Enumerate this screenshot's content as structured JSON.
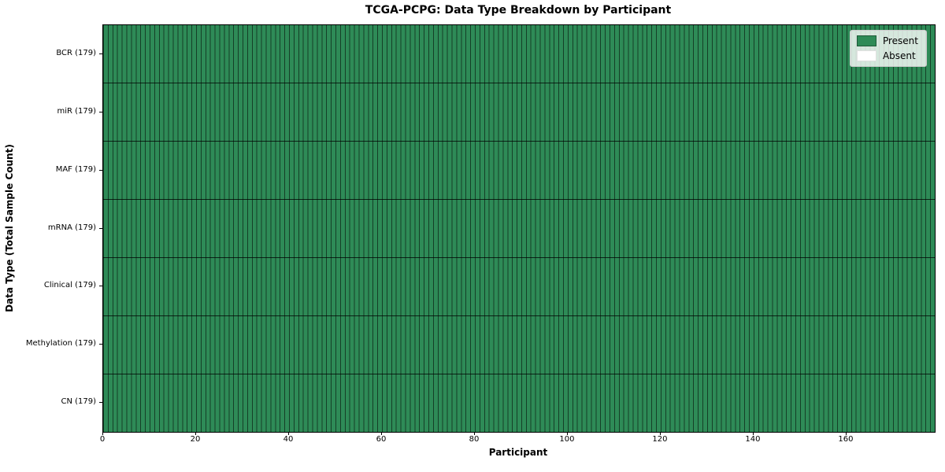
{
  "title": "TCGA-PCPG: Data Type Breakdown by Participant",
  "axes": {
    "x_label": "Participant",
    "y_label": "Data Type (Total Sample Count)"
  },
  "legend": {
    "items": [
      {
        "label": "Present",
        "color": "#2e8b57",
        "kind": "present"
      },
      {
        "label": "Absent",
        "color": "#ffffff",
        "kind": "absent"
      }
    ],
    "position": "upper right"
  },
  "colors": {
    "present": "#2e8b57",
    "absent": "#ffffff",
    "cell_edge": "rgba(0,0,0,0.55)",
    "row_edge": "rgba(0,0,0,0.75)",
    "spine": "#000000"
  },
  "chart_data": {
    "type": "heatmap",
    "title": "TCGA-PCPG: Data Type Breakdown by Participant",
    "xlabel": "Participant",
    "ylabel": "Data Type (Total Sample Count)",
    "n_participants": 179,
    "x_range": [
      0,
      179
    ],
    "x_ticks": [
      0,
      20,
      40,
      60,
      80,
      100,
      120,
      140,
      160
    ],
    "grid": false,
    "legend_entries": [
      "Present",
      "Absent"
    ],
    "legend_position": "upper right",
    "rows": [
      {
        "label": "BCR",
        "tick_label": "BCR (179)",
        "total": 179,
        "present": 179,
        "absent": 0
      },
      {
        "label": "miR",
        "tick_label": "miR (179)",
        "total": 179,
        "present": 179,
        "absent": 0
      },
      {
        "label": "MAF",
        "tick_label": "MAF (179)",
        "total": 179,
        "present": 179,
        "absent": 0
      },
      {
        "label": "mRNA",
        "tick_label": "mRNA (179)",
        "total": 179,
        "present": 179,
        "absent": 0
      },
      {
        "label": "Clinical",
        "tick_label": "Clinical (179)",
        "total": 179,
        "present": 179,
        "absent": 0
      },
      {
        "label": "Methylation",
        "tick_label": "Methylation (179)",
        "total": 179,
        "present": 179,
        "absent": 0
      },
      {
        "label": "CN",
        "tick_label": "CN (179)",
        "total": 179,
        "present": 179,
        "absent": 0
      }
    ]
  }
}
